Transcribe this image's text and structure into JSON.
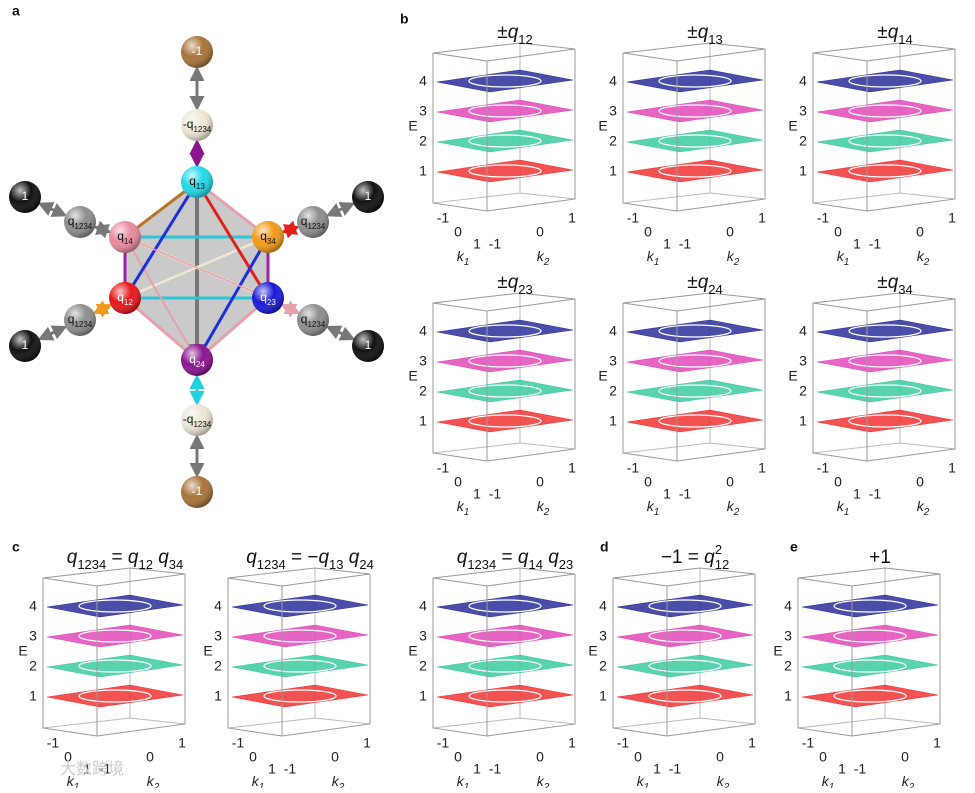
{
  "panel_labels": [
    "a",
    "b",
    "c",
    "d",
    "e"
  ],
  "nodes": [
    {
      "label": [
        {
          "t": "-1"
        }
      ],
      "color": "#a8733a"
    },
    {
      "label": [
        {
          "t": "-q"
        },
        {
          "t": "1234",
          "sub": true
        }
      ],
      "color": "#ece6d6"
    },
    {
      "label": [
        {
          "t": "q"
        },
        {
          "t": "13",
          "sub": true
        }
      ],
      "color": "#22d8e6"
    },
    {
      "label": [
        {
          "t": "1"
        }
      ],
      "color": "#111111"
    },
    {
      "label": [
        {
          "t": "q"
        },
        {
          "t": "1234",
          "sub": true
        }
      ],
      "color": "#8d8d8d"
    },
    {
      "label": [
        {
          "t": "q"
        },
        {
          "t": "14",
          "sub": true
        }
      ],
      "color": "#e88a9c"
    },
    {
      "label": [
        {
          "t": "q"
        },
        {
          "t": "34",
          "sub": true
        }
      ],
      "color": "#f29a18"
    },
    {
      "label": [
        {
          "t": "1"
        }
      ],
      "color": "#111111"
    },
    {
      "label": [
        {
          "t": "q"
        },
        {
          "t": "1234",
          "sub": true
        }
      ],
      "color": "#8d8d8d"
    },
    {
      "label": [
        {
          "t": "q"
        },
        {
          "t": "12",
          "sub": true
        }
      ],
      "color": "#e8161a"
    },
    {
      "label": [
        {
          "t": "q"
        },
        {
          "t": "23",
          "sub": true
        }
      ],
      "color": "#1a1ad8"
    },
    {
      "label": [
        {
          "t": "q"
        },
        {
          "t": "1234",
          "sub": true
        }
      ],
      "color": "#8d8d8d"
    },
    {
      "label": [
        {
          "t": "1"
        }
      ],
      "color": "#111111"
    },
    {
      "label": [
        {
          "t": "q"
        },
        {
          "t": "1234",
          "sub": true
        }
      ],
      "color": "#8d8d8d"
    },
    {
      "label": [
        {
          "t": "1"
        }
      ],
      "color": "#111111"
    },
    {
      "label": [
        {
          "t": "q"
        },
        {
          "t": "24",
          "sub": true
        }
      ],
      "color": "#8a1490"
    },
    {
      "label": [
        {
          "t": "-q"
        },
        {
          "t": "1234",
          "sub": true
        }
      ],
      "color": "#ece6d6"
    },
    {
      "label": [
        {
          "t": "-1"
        }
      ],
      "color": "#a8733a"
    }
  ],
  "axes": {
    "e_label": "E",
    "k1_label": [
      {
        "t": "k"
      },
      {
        "t": "1",
        "sub": true
      }
    ],
    "k2_label": [
      {
        "t": "k"
      },
      {
        "t": "2",
        "sub": true
      }
    ],
    "e_ticks": [
      4,
      3,
      2,
      1
    ],
    "k_ticks": [
      -1,
      0,
      1
    ],
    "band_colors": [
      "#2a2f9a",
      "#e24ab8",
      "#3ccaa0",
      "#f03434"
    ]
  },
  "plots": [
    {
      "title": [
        {
          "t": "±"
        },
        {
          "t": "q",
          "it": true
        },
        {
          "t": "12",
          "sub": true
        }
      ]
    },
    {
      "title": [
        {
          "t": "±"
        },
        {
          "t": "q",
          "it": true
        },
        {
          "t": "13",
          "sub": true
        }
      ]
    },
    {
      "title": [
        {
          "t": "±"
        },
        {
          "t": "q",
          "it": true
        },
        {
          "t": "14",
          "sub": true
        }
      ]
    },
    {
      "title": [
        {
          "t": "±"
        },
        {
          "t": "q",
          "it": true
        },
        {
          "t": "23",
          "sub": true
        }
      ]
    },
    {
      "title": [
        {
          "t": "±"
        },
        {
          "t": "q",
          "it": true
        },
        {
          "t": "24",
          "sub": true
        }
      ]
    },
    {
      "title": [
        {
          "t": "±"
        },
        {
          "t": "q",
          "it": true
        },
        {
          "t": "34",
          "sub": true
        }
      ]
    },
    {
      "title": [
        {
          "t": "q",
          "it": true
        },
        {
          "t": "1234",
          "sub": true
        },
        {
          "t": " = "
        },
        {
          "t": "q",
          "it": true
        },
        {
          "t": "12",
          "sub": true
        },
        {
          "t": " "
        },
        {
          "t": "q",
          "it": true
        },
        {
          "t": "34",
          "sub": true
        }
      ]
    },
    {
      "title": [
        {
          "t": "q",
          "it": true
        },
        {
          "t": "1234",
          "sub": true
        },
        {
          "t": " = −"
        },
        {
          "t": "q",
          "it": true
        },
        {
          "t": "13",
          "sub": true
        },
        {
          "t": " "
        },
        {
          "t": "q",
          "it": true
        },
        {
          "t": "24",
          "sub": true
        }
      ]
    },
    {
      "title": [
        {
          "t": "q",
          "it": true
        },
        {
          "t": "1234",
          "sub": true
        },
        {
          "t": " = "
        },
        {
          "t": "q",
          "it": true
        },
        {
          "t": "14",
          "sub": true
        },
        {
          "t": " "
        },
        {
          "t": "q",
          "it": true
        },
        {
          "t": "23",
          "sub": true
        }
      ]
    },
    {
      "title": [
        {
          "t": "−1 = "
        },
        {
          "t": "q",
          "it": true
        },
        {
          "t": "12",
          "sub": true
        },
        {
          "t": "2",
          "sup": true
        }
      ]
    },
    {
      "title": [
        {
          "t": "+1"
        }
      ]
    }
  ],
  "watermark": "大数跨境"
}
